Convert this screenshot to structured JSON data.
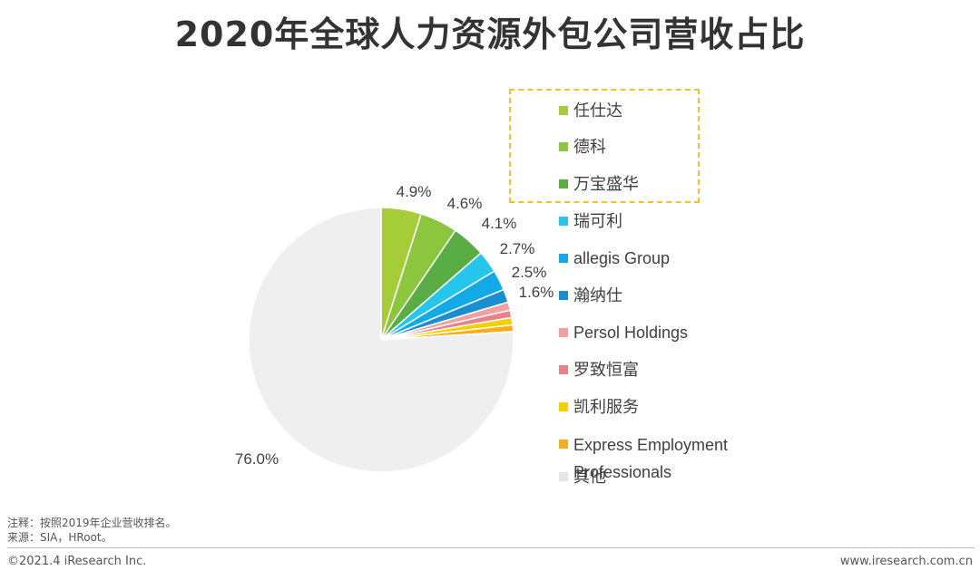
{
  "title": "2020年全球人力资源外包公司营收占比",
  "chart_data": {
    "type": "pie",
    "title": "2020年全球人力资源外包公司营收占比",
    "start_angle_deg": 90,
    "direction": "clockwise",
    "slices": [
      {
        "label": "任仕达",
        "value": 4.9,
        "data_label": "4.9%",
        "color": "#a6cc3a"
      },
      {
        "label": "德科",
        "value": 4.6,
        "data_label": "4.6%",
        "color": "#8cc63f"
      },
      {
        "label": "万宝盛华",
        "value": 4.1,
        "data_label": "4.1%",
        "color": "#5aac44"
      },
      {
        "label": "瑞可利",
        "value": 2.7,
        "data_label": "2.7%",
        "color": "#27c4ec"
      },
      {
        "label": "allegis Group",
        "value": 2.5,
        "data_label": "2.5%",
        "color": "#12a9e6"
      },
      {
        "label": "瀚纳仕",
        "value": 1.6,
        "data_label": "1.6%",
        "color": "#1a8fcf"
      },
      {
        "label": "Persol Holdings",
        "value": 1.0,
        "data_label": "",
        "color": "#f2a0a0"
      },
      {
        "label": "罗致恒富",
        "value": 0.9,
        "data_label": "",
        "color": "#e8818a"
      },
      {
        "label": "凯利服务",
        "value": 0.9,
        "data_label": "",
        "color": "#f5d000"
      },
      {
        "label": "Express Employment Professionals",
        "value": 0.8,
        "data_label": "",
        "color": "#f5ad1b"
      },
      {
        "label": "其他",
        "value": 76.0,
        "data_label": "76.0%",
        "color": "#efefef"
      }
    ],
    "legend_position": "right",
    "highlighted_legend_items": [
      "任仕达",
      "德科",
      "万宝盛华"
    ]
  },
  "notes": {
    "note": "注释：按照2019年企业营收排名。",
    "source": "来源：SIA，HRoot。"
  },
  "footer": {
    "copyright": "©2021.4 iResearch Inc.",
    "website": "www.iresearch.com.cn"
  }
}
